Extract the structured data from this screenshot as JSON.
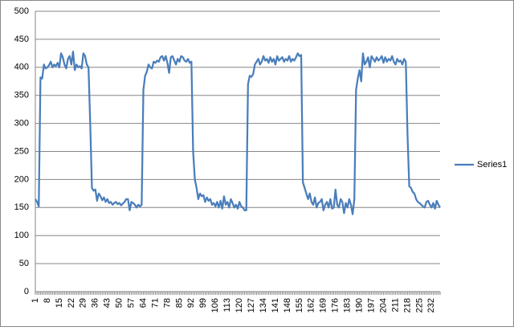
{
  "chart_data": {
    "type": "line",
    "categories": [
      1,
      null,
      null,
      null,
      null,
      null,
      null,
      8,
      null,
      null,
      null,
      null,
      null,
      null,
      15,
      null,
      null,
      null,
      null,
      null,
      null,
      22,
      null,
      null,
      null,
      null,
      null,
      null,
      29,
      null,
      null,
      null,
      null,
      null,
      null,
      36,
      null,
      null,
      null,
      null,
      null,
      null,
      43,
      null,
      null,
      null,
      null,
      null,
      null,
      50,
      null,
      null,
      null,
      null,
      null,
      null,
      57,
      null,
      null,
      null,
      null,
      null,
      null,
      64,
      null,
      null,
      null,
      null,
      null,
      null,
      71,
      null,
      null,
      null,
      null,
      null,
      null,
      78,
      null,
      null,
      null,
      null,
      null,
      null,
      85,
      null,
      null,
      null,
      null,
      null,
      null,
      92,
      null,
      null,
      null,
      null,
      null,
      null,
      99,
      null,
      null,
      null,
      null,
      null,
      null,
      106,
      null,
      null,
      null,
      null,
      null,
      null,
      113,
      null,
      null,
      null,
      null,
      null,
      null,
      120,
      null,
      null,
      null,
      null,
      null,
      null,
      127,
      null,
      null,
      null,
      null,
      null,
      null,
      134,
      null,
      null,
      null,
      null,
      null,
      null,
      141,
      null,
      null,
      null,
      null,
      null,
      null,
      148,
      null,
      null,
      null,
      null,
      null,
      null,
      155,
      null,
      null,
      null,
      null,
      null,
      null,
      162,
      null,
      null,
      null,
      null,
      null,
      null,
      169,
      null,
      null,
      null,
      null,
      null,
      null,
      176,
      null,
      null,
      null,
      null,
      null,
      null,
      183,
      null,
      null,
      null,
      null,
      null,
      null,
      190,
      null,
      null,
      null,
      null,
      null,
      null,
      197,
      null,
      null,
      null,
      null,
      null,
      null,
      204,
      null,
      null,
      null,
      null,
      null,
      null,
      211,
      null,
      null,
      null,
      null,
      null,
      null,
      218,
      null,
      null,
      null,
      null,
      null,
      null,
      225,
      null,
      null,
      null,
      null,
      null,
      null,
      232,
      null,
      null,
      null,
      null,
      null
    ],
    "series": [
      {
        "name": "Series1",
        "color": "#4a7ebb",
        "values": [
          165,
          160,
          152,
          382,
          380,
          405,
          398,
          400,
          404,
          410,
          400,
          405,
          402,
          408,
          400,
          425,
          418,
          405,
          398,
          415,
          420,
          405,
          428,
          395,
          405,
          400,
          402,
          398,
          425,
          420,
          405,
          400,
          300,
          185,
          180,
          182,
          162,
          175,
          170,
          163,
          168,
          160,
          165,
          158,
          160,
          155,
          158,
          160,
          156,
          158,
          154,
          157,
          160,
          165,
          165,
          145,
          160,
          158,
          155,
          150,
          155,
          152,
          155,
          360,
          385,
          392,
          405,
          400,
          398,
          410,
          408,
          412,
          410,
          418,
          420,
          412,
          420,
          408,
          390,
          418,
          420,
          412,
          405,
          415,
          410,
          420,
          418,
          412,
          410,
          415,
          408,
          410,
          250,
          200,
          185,
          165,
          175,
          170,
          172,
          160,
          168,
          162,
          165,
          155,
          158,
          152,
          160,
          150,
          162,
          148,
          170,
          155,
          160,
          150,
          165,
          158,
          150,
          155,
          148,
          160,
          152,
          150,
          145,
          145,
          370,
          385,
          383,
          388,
          405,
          410,
          415,
          405,
          410,
          420,
          412,
          415,
          408,
          418,
          410,
          415,
          405,
          420,
          412,
          415,
          418,
          410,
          415,
          412,
          420,
          410,
          415,
          412,
          418,
          425,
          420,
          422,
          195,
          185,
          175,
          165,
          175,
          160,
          155,
          168,
          150,
          158,
          160,
          165,
          145,
          155,
          160,
          150,
          165,
          148,
          150,
          182,
          155,
          150,
          165,
          160,
          140,
          158,
          150,
          165,
          155,
          138,
          165,
          360,
          380,
          395,
          375,
          425,
          405,
          410,
          418,
          400,
          420,
          415,
          410,
          418,
          412,
          415,
          420,
          408,
          418,
          410,
          415,
          412,
          420,
          410,
          405,
          415,
          410,
          412,
          405,
          415,
          410,
          280,
          188,
          185,
          178,
          175,
          165,
          160,
          158,
          155,
          152,
          150,
          160,
          162,
          155,
          150,
          158,
          148,
          162,
          155,
          150
        ]
      }
    ],
    "ylim": [
      0,
      500
    ],
    "yticks": [
      0,
      50,
      100,
      150,
      200,
      250,
      300,
      350,
      400,
      450,
      500
    ],
    "grid": true,
    "legend": "right"
  }
}
